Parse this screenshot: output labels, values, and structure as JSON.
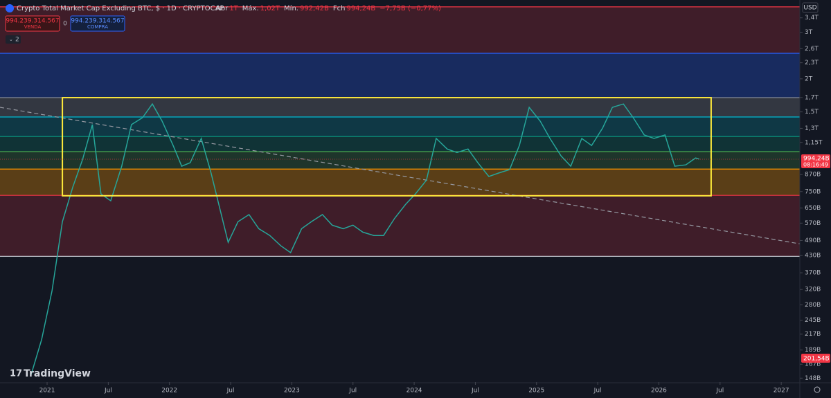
{
  "chart_data": {
    "type": "line",
    "title": "Crypto Total Market Cap Excluding BTC, $ · 1D · CRYPTOCAP",
    "ohlc": [
      {
        "label": "Abr",
        "value": "1T"
      },
      {
        "label": "Máx.",
        "value": "1,02T"
      },
      {
        "label": "Mín.",
        "value": "992,42B"
      },
      {
        "label": "Fch",
        "value": "994,24B"
      }
    ],
    "change": "−7,75B (−0,77%)",
    "sell": {
      "price": "994.239.314.567",
      "label": "VENDA"
    },
    "spread": "0",
    "buy": {
      "price": "994.239.314.567",
      "label": "COMPRA"
    },
    "indicators": "2",
    "currency": "USD",
    "log_scale": true,
    "color": "#26a69a",
    "x": [
      2020.87,
      2020.955,
      2021.04,
      2021.125,
      2021.21,
      2021.29,
      2021.37,
      2021.44,
      2021.52,
      2021.61,
      2021.69,
      2021.78,
      2021.86,
      2021.94,
      2022.03,
      2022.1,
      2022.17,
      2022.26,
      2022.34,
      2022.41,
      2022.48,
      2022.56,
      2022.65,
      2022.73,
      2022.82,
      2022.91,
      2022.99,
      2023.08,
      2023.16,
      2023.25,
      2023.33,
      2023.42,
      2023.5,
      2023.58,
      2023.67,
      2023.75,
      2023.84,
      2023.93,
      2024.01,
      2024.1,
      2024.18,
      2024.27,
      2024.35,
      2024.44,
      2024.52,
      2024.61,
      2024.69,
      2024.78,
      2024.86,
      2024.94,
      2025.03,
      2025.11,
      2025.2,
      2025.28,
      2025.37,
      2025.45,
      2025.54,
      2025.62,
      2025.71,
      2025.79,
      2025.88,
      2025.96,
      2026.05,
      2026.13,
      2026.22,
      2026.3,
      2026.33
    ],
    "values": [
      153,
      207,
      316,
      577,
      780,
      993,
      1343,
      735,
      692,
      935,
      1343,
      1426,
      1607,
      1384,
      1120,
      935,
      964,
      1191,
      881,
      651,
      482,
      577,
      614,
      543,
      512,
      468,
      441,
      543,
      577,
      614,
      560,
      543,
      560,
      527,
      512,
      512,
      594,
      671,
      735,
      828,
      1191,
      1086,
      1054,
      1086,
      964,
      855,
      881,
      908,
      1120,
      1560,
      1384,
      1191,
      1023,
      935,
      1191,
      1120,
      1303,
      1560,
      1607,
      1426,
      1227,
      1191,
      1227,
      935,
      946,
      1005,
      994.24
    ],
    "xlim": [
      2020.615,
      2027.152
    ],
    "ylim": [
      143,
      3970
    ],
    "xticks": [
      {
        "value": 2021,
        "label": "2021"
      },
      {
        "value": 2021.5,
        "label": "Jul"
      },
      {
        "value": 2022,
        "label": "2022"
      },
      {
        "value": 2022.5,
        "label": "Jul"
      },
      {
        "value": 2023,
        "label": "2023"
      },
      {
        "value": 2023.5,
        "label": "Jul"
      },
      {
        "value": 2024,
        "label": "2024"
      },
      {
        "value": 2024.5,
        "label": "Jul"
      },
      {
        "value": 2025,
        "label": "2025"
      },
      {
        "value": 2025.5,
        "label": "Jul"
      },
      {
        "value": 2026,
        "label": "2026"
      },
      {
        "value": 2026.5,
        "label": "Jul"
      },
      {
        "value": 2027,
        "label": "2027"
      }
    ],
    "yticks": [
      {
        "value": 3400,
        "label": "3,4T"
      },
      {
        "value": 3000,
        "label": "3T"
      },
      {
        "value": 2600,
        "label": "2,6T"
      },
      {
        "value": 2300,
        "label": "2,3T"
      },
      {
        "value": 2000,
        "label": "2T"
      },
      {
        "value": 1700,
        "label": "1,7T"
      },
      {
        "value": 1500,
        "label": "1,5T"
      },
      {
        "value": 1300,
        "label": "1,3T"
      },
      {
        "value": 1150,
        "label": "1,15T"
      },
      {
        "value": 870,
        "label": "870B"
      },
      {
        "value": 750,
        "label": "750B"
      },
      {
        "value": 650,
        "label": "650B"
      },
      {
        "value": 570,
        "label": "570B"
      },
      {
        "value": 490,
        "label": "490B"
      },
      {
        "value": 430,
        "label": "430B"
      },
      {
        "value": 370,
        "label": "370B"
      },
      {
        "value": 320,
        "label": "320B"
      },
      {
        "value": 280,
        "label": "280B"
      },
      {
        "value": 245,
        "label": "245B"
      },
      {
        "value": 217,
        "label": "217B"
      },
      {
        "value": 189,
        "label": "189B"
      },
      {
        "value": 167,
        "label": "167B"
      },
      {
        "value": 148,
        "label": "148B"
      }
    ],
    "last_price": {
      "value": 994.24,
      "label": "994,24B"
    },
    "countdown": "08:16:49",
    "volume_label": "201,54B",
    "levels": [
      {
        "value": 3741,
        "color": "#f23645",
        "fill": "rgba(242,54,69,0.2)"
      },
      {
        "value": 2497,
        "color": "#2962ff",
        "fill": "rgba(41,98,255,0.28)"
      },
      {
        "value": 1698,
        "color": "#9598a1",
        "fill": "rgba(149,152,161,0.25)"
      },
      {
        "value": 1435,
        "color": "#00bcd4",
        "fill": "rgba(0,188,212,0.2)"
      },
      {
        "value": 1211,
        "color": "#089981",
        "fill": "rgba(8,153,129,0.22)"
      },
      {
        "value": 1061,
        "color": "#4caf50",
        "fill": "rgba(76,175,80,0.2)"
      },
      {
        "value": 912,
        "color": "#ff9800",
        "fill": "rgba(255,152,0,0.3)"
      },
      {
        "value": 726,
        "color": "#f23645",
        "fill": "rgba(242,54,69,0.2)"
      },
      {
        "value": 427,
        "color": "#d1d4dc"
      }
    ],
    "box": {
      "x": [
        2021.125,
        2026.427
      ],
      "y": [
        1698,
        723
      ],
      "color": "#ffeb3b"
    },
    "trendline": {
      "x": [
        2020.615,
        2027.152
      ],
      "y": [
        1561,
        476
      ],
      "color": "#9598a1"
    },
    "watermark": "TradingView"
  }
}
